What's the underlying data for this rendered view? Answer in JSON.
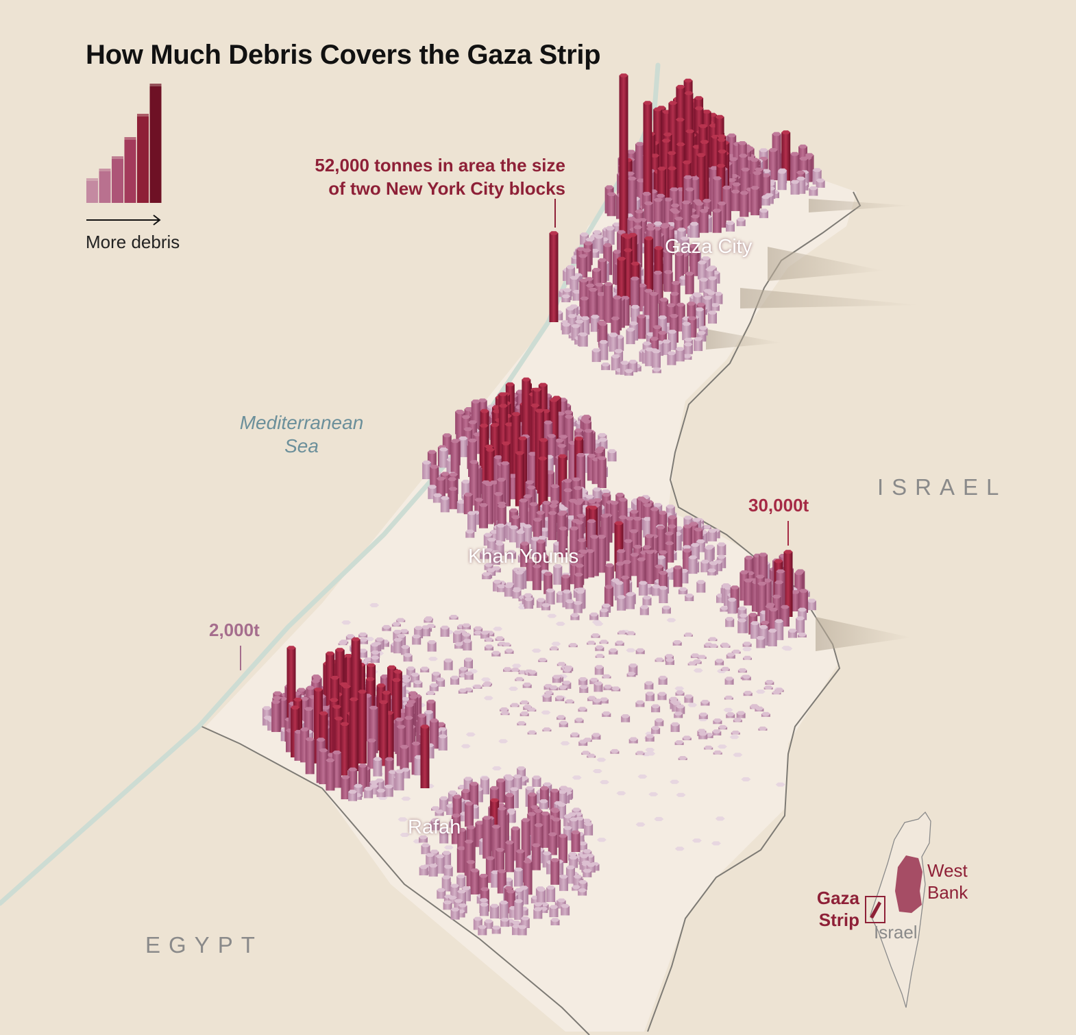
{
  "title": "How Much Debris Covers the Gaza Strip",
  "legend": {
    "caption": "More debris",
    "arrow_icon": "arrow-right-icon",
    "bar_colors": [
      "#c48aa1",
      "#b9718f",
      "#ad5577",
      "#a33a5b",
      "#8e2037",
      "#6e1125"
    ]
  },
  "annotations": {
    "main_line1": "52,000 tonnes in area the size",
    "main_line2": "of two New York City blocks",
    "label_30k": "30,000t",
    "label_2k": "2,000t"
  },
  "cities": {
    "gaza_city": "Gaza City",
    "khan_younis": "Khan Younis",
    "rafah": "Rafah"
  },
  "sea": {
    "line1": "Mediterranean",
    "line2": "Sea"
  },
  "countries": {
    "israel": "ISRAEL",
    "egypt": "EGYPT"
  },
  "inset": {
    "gaza_line1": "Gaza",
    "gaza_line2": "Strip",
    "west_bank_line1": "West",
    "west_bank_line2": "Bank",
    "israel": "Israel"
  },
  "colors": {
    "background": "#ede3d3",
    "strip_ground": "#f3ebe1",
    "coast": "#c9dbd2",
    "border": "#7d7a74",
    "debris_low": "#c9a3bc",
    "debris_mid": "#a95a7e",
    "debris_high": "#8e1a33"
  }
}
